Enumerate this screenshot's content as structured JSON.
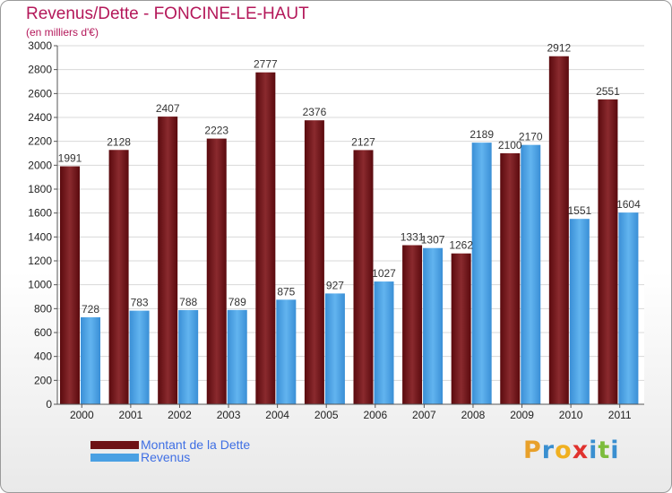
{
  "title": "Revenus/Dette - FONCINE-LE-HAUT",
  "subtitle": "(en milliers d'€)",
  "colors": {
    "dette": "#6e1216",
    "revenus": "#4aa0e3",
    "title": "#b4185a"
  },
  "chart_data": {
    "type": "bar",
    "title": "Revenus/Dette - FONCINE-LE-HAUT",
    "ylabel": "(en milliers d'€)",
    "ylim": [
      0,
      3000
    ],
    "yticks": [
      0,
      200,
      400,
      600,
      800,
      1000,
      1200,
      1400,
      1600,
      1800,
      2000,
      2200,
      2400,
      2600,
      2800,
      3000
    ],
    "categories": [
      "2000",
      "2001",
      "2002",
      "2003",
      "2004",
      "2005",
      "2006",
      "2007",
      "2008",
      "2009",
      "2010",
      "2011"
    ],
    "series": [
      {
        "name": "Montant de la Dette",
        "values": [
          1991,
          2128,
          2407,
          2223,
          2777,
          2376,
          2127,
          1331,
          1262,
          2100,
          2912,
          2551
        ]
      },
      {
        "name": "Revenus",
        "values": [
          728,
          783,
          788,
          789,
          875,
          927,
          1027,
          1307,
          2189,
          2170,
          1551,
          1604
        ]
      }
    ],
    "data_labels": {
      "dette": [
        "1991",
        "2128",
        "2407",
        "2223",
        "2777",
        "2376",
        "2127",
        "1331",
        "1262",
        "2100",
        "2912",
        "2551"
      ],
      "revenus": [
        "728",
        "783",
        "788",
        "789",
        "875",
        "927",
        "1027",
        "1307",
        "2189",
        "2170",
        "1551",
        "1604"
      ]
    },
    "grid": true,
    "legend": "bottom-left"
  },
  "legend": [
    {
      "label": "Montant de la Dette",
      "color": "#6e1216"
    },
    {
      "label": "Revenus",
      "color": "#4aa0e3"
    }
  ],
  "logo": {
    "letters": [
      "P",
      "r",
      "o",
      "x",
      "i",
      "t",
      "i"
    ],
    "colors": [
      "#e8a02a",
      "#3a8fd0",
      "#f0b020",
      "#e0322e",
      "#3a8fd0",
      "#7cbc3c",
      "#3a8fd0"
    ]
  }
}
